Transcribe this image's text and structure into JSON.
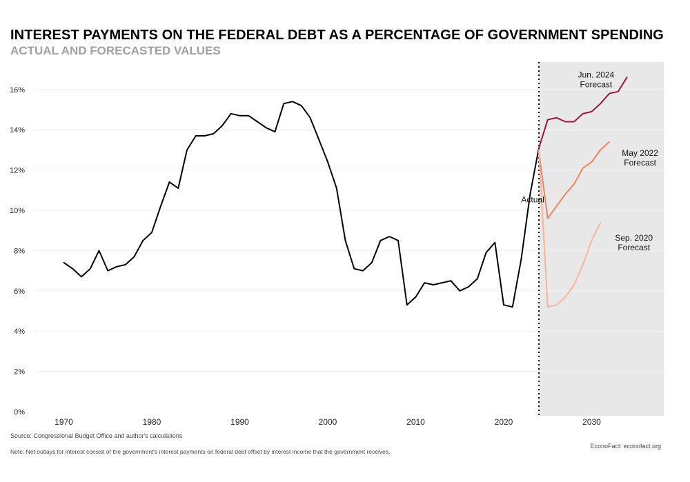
{
  "chart_data": {
    "type": "line",
    "title": "INTEREST PAYMENTS ON THE FEDERAL DEBT AS A PERCENTAGE OF GOVERNMENT SPENDING",
    "subtitle": "ACTUAL AND FORECASTED VALUES",
    "xlabel": "",
    "ylabel": "",
    "xlim": [
      1968,
      2039
    ],
    "ylim": [
      0,
      17
    ],
    "x_ticks": [
      1970,
      1980,
      1990,
      2000,
      2010,
      2020,
      2030
    ],
    "y_ticks": [
      0,
      2,
      4,
      6,
      8,
      10,
      12,
      14,
      16
    ],
    "y_tick_labels": [
      "0%",
      "2%",
      "4%",
      "6%",
      "8%",
      "10%",
      "12%",
      "14%",
      "16%"
    ],
    "forecast_region_start": 2024,
    "grid": "horizontal",
    "series": [
      {
        "name": "Actual",
        "color": "#000000",
        "x": [
          1970,
          1971,
          1972,
          1973,
          1974,
          1975,
          1976,
          1977,
          1978,
          1979,
          1980,
          1981,
          1982,
          1983,
          1984,
          1985,
          1986,
          1987,
          1988,
          1989,
          1990,
          1991,
          1992,
          1993,
          1994,
          1995,
          1996,
          1997,
          1998,
          1999,
          2000,
          2001,
          2002,
          2003,
          2004,
          2005,
          2006,
          2007,
          2008,
          2009,
          2010,
          2011,
          2012,
          2013,
          2014,
          2015,
          2016,
          2017,
          2018,
          2019,
          2020,
          2021,
          2022,
          2023,
          2024
        ],
        "values": [
          7.4,
          7.1,
          6.7,
          7.1,
          8.0,
          7.0,
          7.2,
          7.3,
          7.7,
          8.5,
          8.9,
          10.2,
          11.4,
          11.1,
          13.0,
          13.7,
          13.7,
          13.8,
          14.2,
          14.8,
          14.7,
          14.7,
          14.4,
          14.1,
          13.9,
          15.3,
          15.4,
          15.2,
          14.6,
          13.5,
          12.4,
          11.1,
          8.5,
          7.1,
          7.0,
          7.4,
          8.5,
          8.7,
          8.5,
          5.3,
          5.7,
          6.4,
          6.3,
          6.4,
          6.5,
          6.0,
          6.2,
          6.6,
          7.9,
          8.4,
          5.3,
          5.2,
          7.6,
          10.8,
          13.1
        ]
      },
      {
        "name": "Jun. 2024 Forecast",
        "color": "#a3123e",
        "x": [
          2024,
          2025,
          2026,
          2027,
          2028,
          2029,
          2030,
          2031,
          2032,
          2033,
          2034
        ],
        "values": [
          13.1,
          14.5,
          14.6,
          14.4,
          14.4,
          14.8,
          14.9,
          15.3,
          15.8,
          15.9,
          16.6
        ]
      },
      {
        "name": "May 2022 Forecast",
        "color": "#f0835d",
        "x": [
          2024,
          2025,
          2026,
          2027,
          2028,
          2029,
          2030,
          2031,
          2032
        ],
        "values": [
          12.9,
          9.6,
          10.2,
          10.8,
          11.3,
          12.1,
          12.4,
          13.0,
          13.4
        ]
      },
      {
        "name": "Sep. 2020 Forecast",
        "color": "#f8b49b",
        "x": [
          2024,
          2025,
          2026,
          2027,
          2028,
          2029,
          2030,
          2031
        ],
        "values": [
          13.0,
          5.2,
          5.3,
          5.7,
          6.3,
          7.3,
          8.5,
          9.4
        ]
      }
    ],
    "annotations": [
      {
        "text": "Actual",
        "x": 2023.3,
        "y": 10.4
      },
      {
        "text": "Jun. 2024",
        "text2": "Forecast",
        "x": 2030.5,
        "y": 16.6
      },
      {
        "text": "May 2022",
        "text2": "Forecast",
        "x": 2035.5,
        "y": 12.7
      },
      {
        "text": "Sep. 2020",
        "text2": "Forecast",
        "x": 2034.8,
        "y": 8.5
      }
    ]
  },
  "footer": {
    "source": "Source: Congressional Budget Office and author's calculations",
    "credit": "EconoFact: econofact.org",
    "note": "Note: Net outlays for interest consist of the government's interest payments on federal debt offset by interest income that the government receives."
  },
  "colors": {
    "forecast_shade": "#e8e8e8",
    "gridline": "#eeeeee",
    "axis_text": "#222222"
  }
}
